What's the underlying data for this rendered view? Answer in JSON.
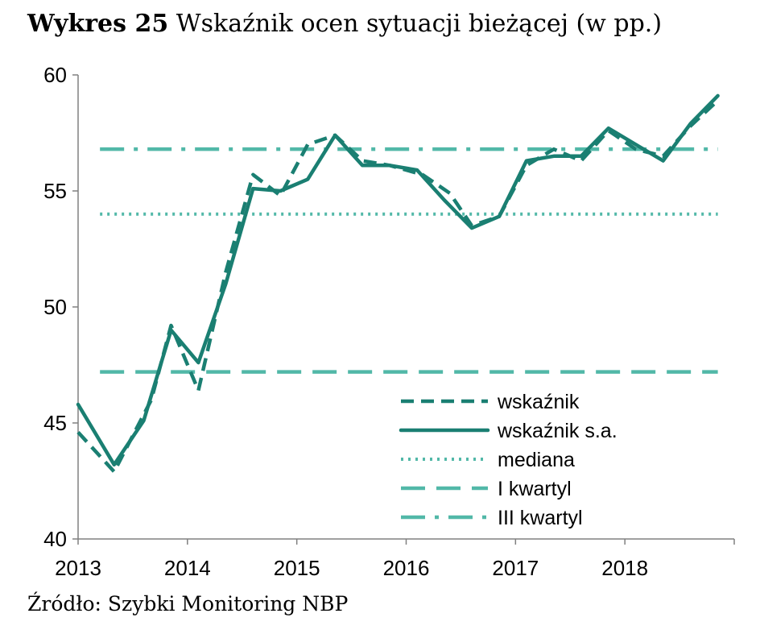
{
  "title": {
    "bold": "Wykres 25",
    "rest": "Wskaźnik ocen sytuacji bieżącej (w pp.)"
  },
  "source": "Źródło: Szybki Monitoring NBP",
  "chart_data": {
    "type": "line",
    "title": "Wykres 25 Wskaźnik ocen sytuacji bieżącej (w pp.)",
    "xlabel": "",
    "ylabel": "",
    "xlim": [
      2013,
      2019
    ],
    "ylim": [
      40,
      60
    ],
    "yticks": [
      40,
      45,
      50,
      55,
      60
    ],
    "xticks": [
      2013,
      2014,
      2015,
      2016,
      2017,
      2018
    ],
    "grid": false,
    "legend_position": "bottom-right",
    "colors": {
      "dark": "#1a7f72",
      "light": "#52b8a8"
    },
    "series": [
      {
        "name": "wskaźnik",
        "style": "dashed",
        "x": [
          2013.0,
          2013.33,
          2013.67,
          2013.85,
          2014.1,
          2014.35,
          2014.6,
          2014.85,
          2015.1,
          2015.35,
          2015.6,
          2015.85,
          2016.15,
          2016.4,
          2016.6,
          2016.85,
          2017.1,
          2017.35,
          2017.6,
          2017.85,
          2018.1,
          2018.35,
          2018.6,
          2018.85
        ],
        "values": [
          44.6,
          42.9,
          46.0,
          49.2,
          46.4,
          51.5,
          55.7,
          54.8,
          57.0,
          57.4,
          56.3,
          56.1,
          55.7,
          54.9,
          53.5,
          53.9,
          56.1,
          56.8,
          56.3,
          57.6,
          56.8,
          56.5,
          57.8,
          58.9
        ]
      },
      {
        "name": "wskaźnik s.a.",
        "style": "solid",
        "x": [
          2013.0,
          2013.33,
          2013.6,
          2013.85,
          2014.1,
          2014.35,
          2014.6,
          2014.85,
          2015.1,
          2015.35,
          2015.6,
          2015.85,
          2016.1,
          2016.35,
          2016.6,
          2016.85,
          2017.1,
          2017.35,
          2017.6,
          2017.85,
          2018.1,
          2018.35,
          2018.6,
          2018.85
        ],
        "values": [
          45.8,
          43.2,
          45.1,
          49.0,
          47.6,
          51.0,
          55.1,
          55.0,
          55.5,
          57.4,
          56.1,
          56.1,
          55.9,
          54.6,
          53.4,
          53.9,
          56.3,
          56.5,
          56.5,
          57.7,
          57.0,
          56.3,
          57.9,
          59.1
        ]
      },
      {
        "name": "mediana",
        "style": "dotted",
        "constant": 54.0
      },
      {
        "name": "I kwartyl",
        "style": "long-dashed",
        "constant": 47.2
      },
      {
        "name": "III kwartyl",
        "style": "dash-dot",
        "constant": 56.8
      }
    ]
  }
}
